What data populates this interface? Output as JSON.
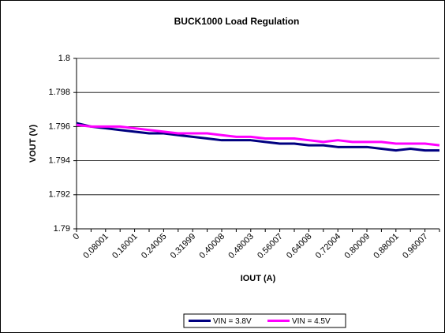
{
  "chart_data": {
    "type": "line",
    "title": "BUCK1000 Load Regulation",
    "x_label": "IOUT (A)",
    "y_label": "VOUT (V)",
    "categories": [
      "0",
      null,
      "0.08001",
      null,
      "0.16001",
      null,
      "0.24005",
      null,
      "0.31999",
      null,
      "0.40008",
      null,
      "0.48003",
      null,
      "0.56007",
      null,
      "0.64008",
      null,
      "0.72004",
      null,
      "0.80009",
      null,
      "0.88001",
      null,
      "0.96007",
      null
    ],
    "series": [
      {
        "name": "VIN = 3.8V",
        "color": "#000080",
        "values": [
          1.7962,
          1.796,
          1.7959,
          1.7958,
          1.7957,
          1.7956,
          1.7956,
          1.7955,
          1.7954,
          1.7953,
          1.7952,
          1.7952,
          1.7952,
          1.7951,
          1.795,
          1.795,
          1.7949,
          1.7949,
          1.7948,
          1.7948,
          1.7948,
          1.7947,
          1.7946,
          1.7947,
          1.7946,
          1.7946
        ]
      },
      {
        "name": "VIN = 4.5V",
        "color": "#ff00ff",
        "values": [
          1.7961,
          1.796,
          1.796,
          1.796,
          1.7959,
          1.7958,
          1.7957,
          1.7956,
          1.7956,
          1.7956,
          1.7955,
          1.7954,
          1.7954,
          1.7953,
          1.7953,
          1.7953,
          1.7952,
          1.7951,
          1.7952,
          1.7951,
          1.7951,
          1.7951,
          1.795,
          1.795,
          1.795,
          1.7949
        ]
      }
    ],
    "ylim": [
      1.79,
      1.8
    ],
    "yticks": [
      1.79,
      1.792,
      1.794,
      1.796,
      1.798,
      1.8
    ],
    "grid": true,
    "legend": "bottom"
  }
}
